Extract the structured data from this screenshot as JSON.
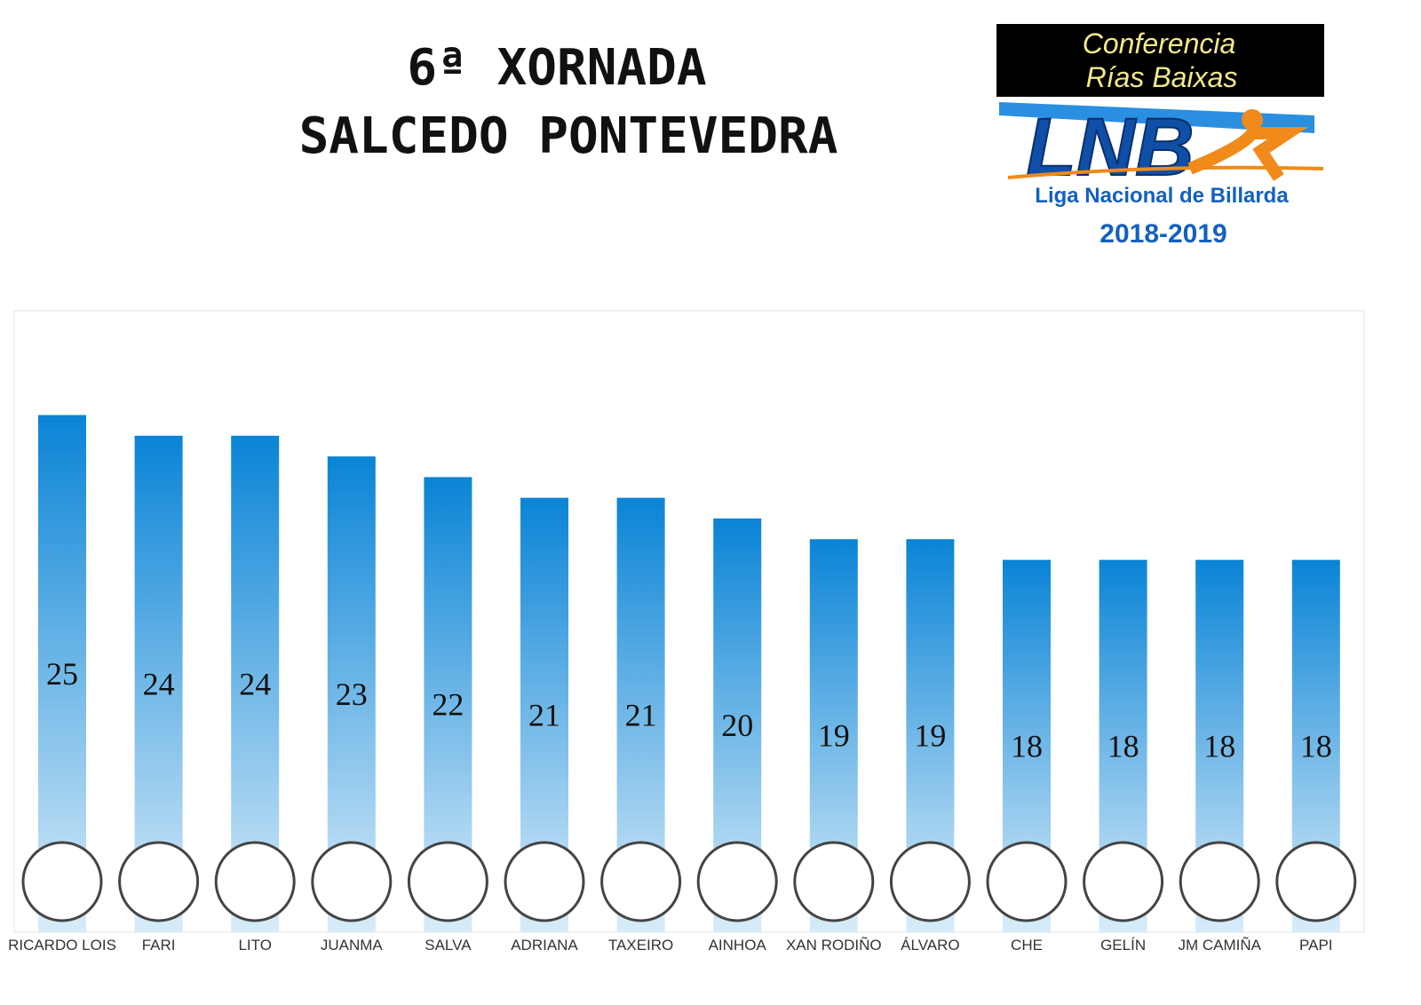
{
  "header": {
    "title": "6ª XORNADA",
    "subtitle": "SALCEDO PONTEVEDRA",
    "logo": {
      "line1": "Conferencia",
      "line2": "Rías Baixas",
      "mark": "LNB",
      "league": "Liga Nacional de Billarda",
      "season": "2018-2019"
    }
  },
  "chart_data": {
    "type": "bar",
    "categories": [
      "RICARDO LOIS",
      "FARI",
      "LITO",
      "JUANMA",
      "SALVA",
      "ADRIANA",
      "TAXEIRO",
      "AINHOA",
      "XAN RODIÑO",
      "ÁLVARO",
      "CHE",
      "GELÍN",
      "JM CAMIÑA",
      "PAPI"
    ],
    "values": [
      25,
      24,
      24,
      23,
      22,
      21,
      21,
      20,
      19,
      19,
      18,
      18,
      18,
      18
    ],
    "color": "#0a84d6"
  }
}
